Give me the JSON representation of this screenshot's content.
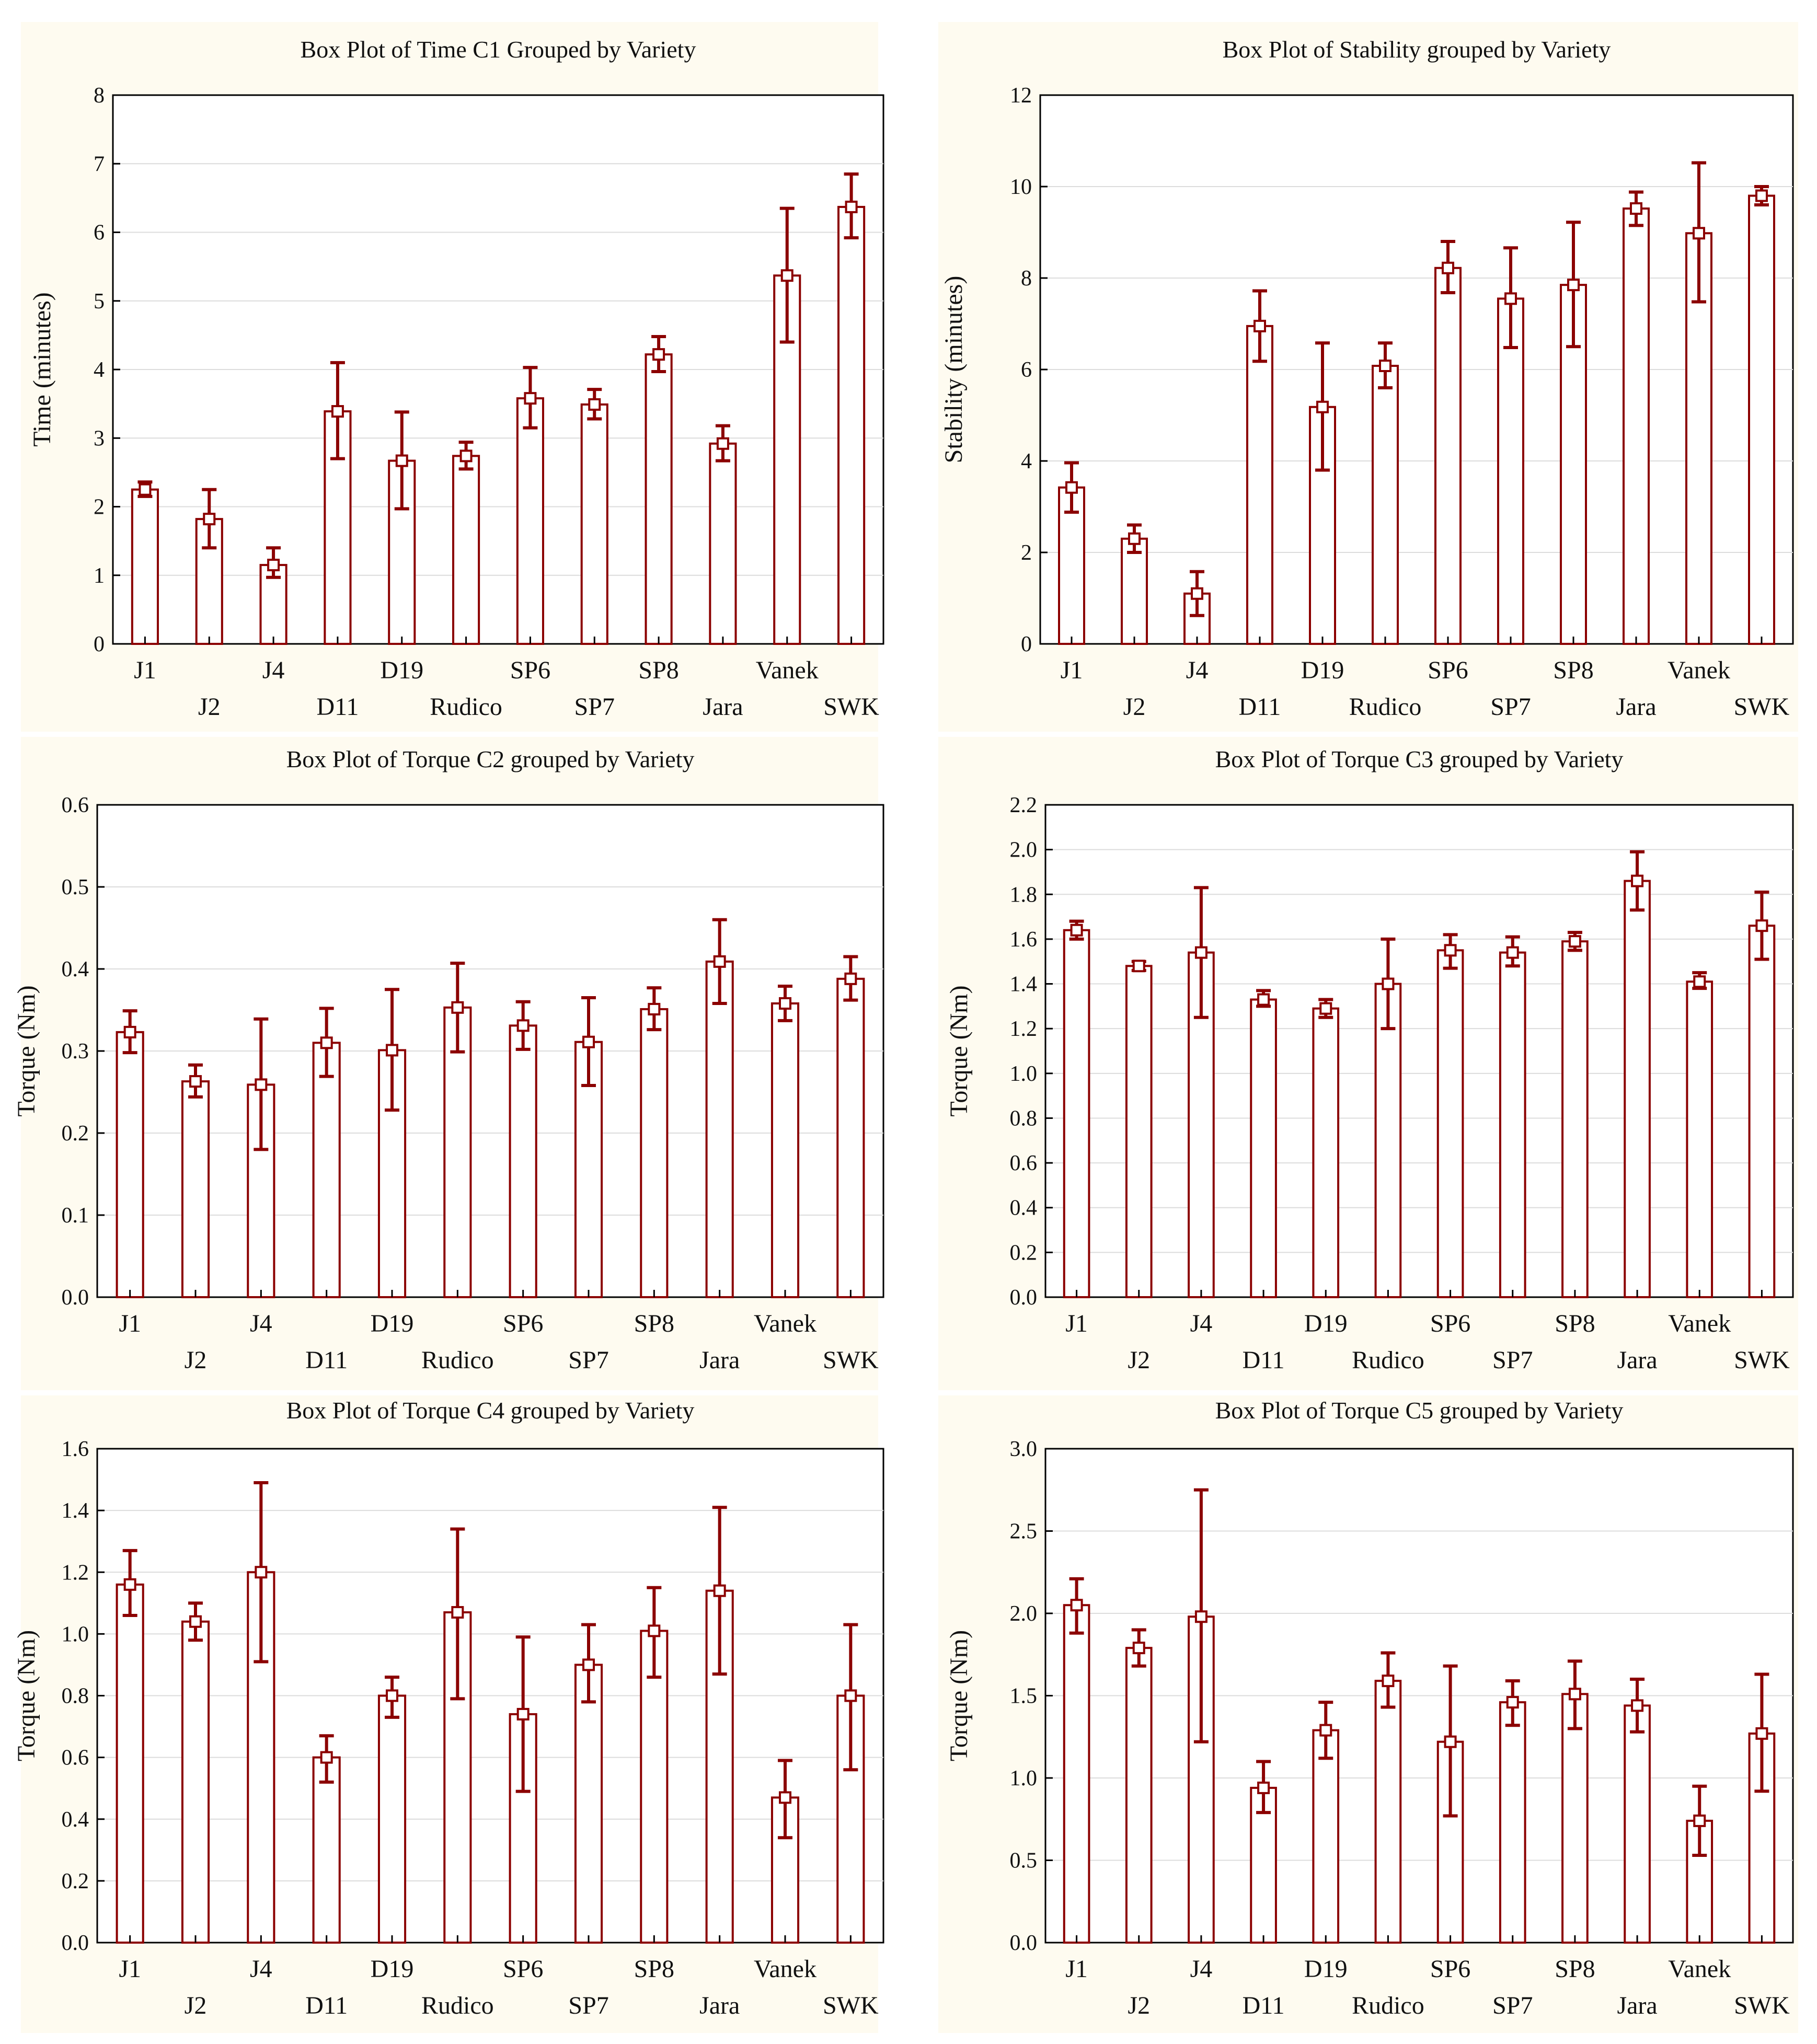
{
  "chart_data": [
    {
      "type": "bar",
      "title": "Box Plot of Time C1 Grouped by Variety",
      "ylabel": "Time (minutes)",
      "xlabel": "",
      "ylim": [
        0,
        8
      ],
      "yticks": [
        "0",
        "1",
        "2",
        "3",
        "4",
        "5",
        "6",
        "7",
        "8"
      ],
      "categories": [
        "J1",
        "J2",
        "J4",
        "D11",
        "D19",
        "Rudico",
        "SP6",
        "SP7",
        "SP8",
        "Jara",
        "Vanek",
        "SWK"
      ],
      "values": [
        2.25,
        1.82,
        1.15,
        3.39,
        2.67,
        2.74,
        3.58,
        3.49,
        4.22,
        2.92,
        5.37,
        6.37
      ],
      "lower": [
        2.15,
        1.4,
        0.97,
        2.7,
        1.97,
        2.55,
        3.15,
        3.28,
        3.97,
        2.67,
        4.4,
        5.92
      ],
      "upper": [
        2.36,
        2.25,
        1.4,
        4.1,
        3.38,
        2.94,
        4.03,
        3.71,
        4.48,
        3.18,
        6.35,
        6.85
      ]
    },
    {
      "type": "bar",
      "title": "Box Plot of Stability grouped by Variety",
      "ylabel": "Stability (minutes)",
      "xlabel": "",
      "ylim": [
        0,
        12
      ],
      "yticks": [
        "0",
        "2",
        "4",
        "6",
        "8",
        "10",
        "12"
      ],
      "categories": [
        "J1",
        "J2",
        "J4",
        "D11",
        "D19",
        "Rudico",
        "SP6",
        "SP7",
        "SP8",
        "Jara",
        "Vanek",
        "SWK"
      ],
      "values": [
        3.42,
        2.3,
        1.1,
        6.95,
        5.18,
        6.08,
        8.22,
        7.55,
        7.85,
        9.52,
        8.98,
        9.8
      ],
      "lower": [
        2.88,
        2.0,
        0.62,
        6.18,
        3.8,
        5.6,
        7.68,
        6.48,
        6.5,
        9.15,
        7.48,
        9.6
      ],
      "upper": [
        3.96,
        2.6,
        1.58,
        7.72,
        6.58,
        6.58,
        8.8,
        8.66,
        9.22,
        9.88,
        10.52,
        10.0
      ]
    },
    {
      "type": "bar",
      "title": "Box Plot of Torque C2 grouped by Variety",
      "ylabel": "Torque (Nm)",
      "xlabel": "",
      "ylim": [
        0,
        0.6
      ],
      "yticks": [
        "0.0",
        "0.1",
        "0.2",
        "0.3",
        "0.4",
        "0.5",
        "0.6"
      ],
      "categories": [
        "J1",
        "J2",
        "J4",
        "D11",
        "D19",
        "Rudico",
        "SP6",
        "SP7",
        "SP8",
        "Jara",
        "Vanek",
        "SWK"
      ],
      "values": [
        0.323,
        0.263,
        0.259,
        0.31,
        0.301,
        0.353,
        0.331,
        0.311,
        0.351,
        0.409,
        0.358,
        0.388
      ],
      "lower": [
        0.298,
        0.244,
        0.18,
        0.269,
        0.228,
        0.299,
        0.302,
        0.258,
        0.326,
        0.358,
        0.337,
        0.362
      ],
      "upper": [
        0.349,
        0.283,
        0.339,
        0.352,
        0.375,
        0.407,
        0.36,
        0.365,
        0.377,
        0.46,
        0.379,
        0.415
      ]
    },
    {
      "type": "bar",
      "title": "Box Plot of Torque C3 grouped by Variety",
      "ylabel": "Torque (Nm)",
      "xlabel": "",
      "ylim": [
        0,
        2.2
      ],
      "yticks": [
        "0.0",
        "0.2",
        "0.4",
        "0.6",
        "0.8",
        "1.0",
        "1.2",
        "1.4",
        "1.6",
        "1.8",
        "2.0",
        "2.2"
      ],
      "categories": [
        "J1",
        "J2",
        "J4",
        "D11",
        "D19",
        "Rudico",
        "SP6",
        "SP7",
        "SP8",
        "Jara",
        "Vanek",
        "SWK"
      ],
      "values": [
        1.64,
        1.48,
        1.54,
        1.33,
        1.29,
        1.4,
        1.55,
        1.54,
        1.59,
        1.86,
        1.41,
        1.66
      ],
      "lower": [
        1.6,
        1.46,
        1.25,
        1.3,
        1.25,
        1.2,
        1.47,
        1.48,
        1.55,
        1.73,
        1.38,
        1.51
      ],
      "upper": [
        1.68,
        1.5,
        1.83,
        1.37,
        1.33,
        1.6,
        1.62,
        1.61,
        1.63,
        1.99,
        1.45,
        1.81
      ]
    },
    {
      "type": "bar",
      "title": "Box Plot of Torque C4 grouped by Variety",
      "ylabel": "Torque (Nm)",
      "xlabel": "",
      "ylim": [
        0,
        1.6
      ],
      "yticks": [
        "0.0",
        "0.2",
        "0.4",
        "0.6",
        "0.8",
        "1.0",
        "1.2",
        "1.4",
        "1.6"
      ],
      "categories": [
        "J1",
        "J2",
        "J4",
        "D11",
        "D19",
        "Rudico",
        "SP6",
        "SP7",
        "SP8",
        "Jara",
        "Vanek",
        "SWK"
      ],
      "values": [
        1.16,
        1.04,
        1.2,
        0.6,
        0.8,
        1.07,
        0.74,
        0.9,
        1.01,
        1.14,
        0.47,
        0.8
      ],
      "lower": [
        1.06,
        0.98,
        0.91,
        0.52,
        0.73,
        0.79,
        0.49,
        0.78,
        0.86,
        0.87,
        0.34,
        0.56
      ],
      "upper": [
        1.27,
        1.1,
        1.49,
        0.67,
        0.86,
        1.34,
        0.99,
        1.03,
        1.15,
        1.41,
        0.59,
        1.03
      ]
    },
    {
      "type": "bar",
      "title": "Box Plot of Torque C5 grouped by Variety",
      "ylabel": "Torque (Nm)",
      "xlabel": "",
      "ylim": [
        0,
        3.0
      ],
      "yticks": [
        "0.0",
        "0.5",
        "1.0",
        "1.5",
        "2.0",
        "2.5",
        "3.0"
      ],
      "categories": [
        "J1",
        "J2",
        "J4",
        "D11",
        "D19",
        "Rudico",
        "SP6",
        "SP7",
        "SP8",
        "Jara",
        "Vanek",
        "SWK"
      ],
      "values": [
        2.05,
        1.79,
        1.98,
        0.94,
        1.29,
        1.59,
        1.22,
        1.46,
        1.51,
        1.44,
        0.74,
        1.27
      ],
      "lower": [
        1.88,
        1.68,
        1.22,
        0.79,
        1.12,
        1.43,
        0.77,
        1.32,
        1.3,
        1.28,
        0.53,
        0.92
      ],
      "upper": [
        2.21,
        1.9,
        2.75,
        1.1,
        1.46,
        1.76,
        1.68,
        1.59,
        1.71,
        1.6,
        0.95,
        1.63
      ]
    }
  ]
}
